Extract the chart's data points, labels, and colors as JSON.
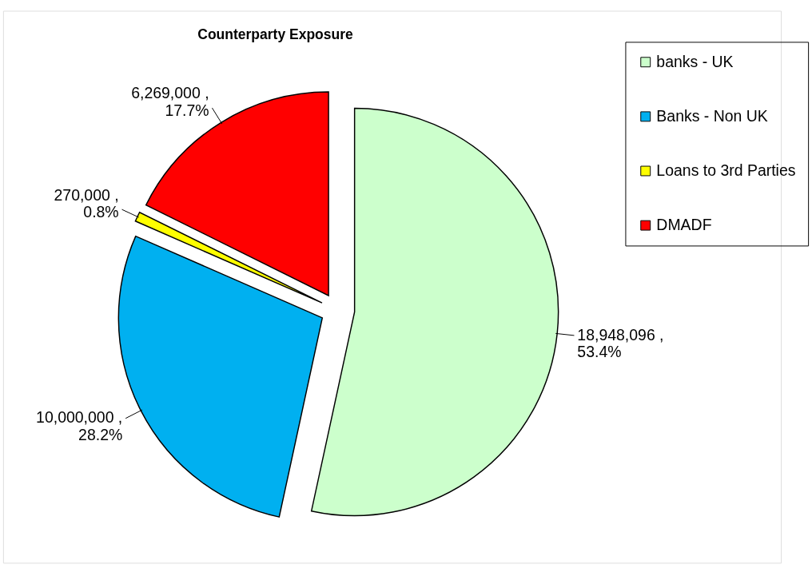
{
  "chart_data": {
    "type": "pie",
    "title": "Counterparty Exposure",
    "categories": [
      "banks - UK",
      "Banks - Non UK",
      "Loans to 3rd Parties",
      "DMADF"
    ],
    "values": [
      18948096,
      10000000,
      270000,
      6269000
    ],
    "colors": [
      "#ccffcc",
      "#00b0f0",
      "#ffff00",
      "#ff0000"
    ],
    "value_labels": [
      "18,948,096 , 53.4%",
      "10,000,000 , 28.2%",
      "270,000 , 0.8%",
      "6,269,000 , 17.7%"
    ],
    "legend": "right"
  }
}
